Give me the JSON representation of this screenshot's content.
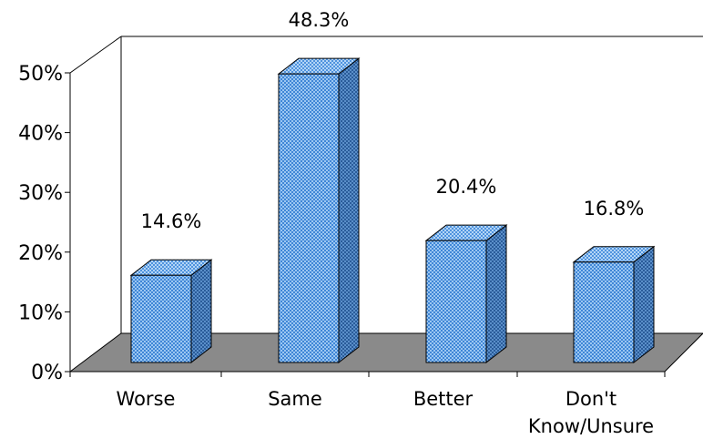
{
  "chart_data": {
    "type": "bar",
    "style": "3d-column",
    "categories": [
      "Worse",
      "Same",
      "Better",
      "Don't\nKnow/Unsure"
    ],
    "values": [
      14.6,
      48.3,
      20.4,
      16.8
    ],
    "value_labels": [
      "14.6%",
      "48.3%",
      "20.4%",
      "16.8%"
    ],
    "y_ticks": [
      "0%",
      "10%",
      "20%",
      "30%",
      "40%",
      "50%"
    ],
    "ylim": [
      0,
      50
    ],
    "grid": false,
    "legend": false,
    "colors": {
      "bar_front": "#3f86d6",
      "bar_top": "#6aa8ec",
      "bar_side": "#2a5c9a",
      "bar_pattern": "#9cc7f2",
      "floor": "#8a8a8a",
      "wall": "#ffffff",
      "outline": "#000000"
    }
  }
}
